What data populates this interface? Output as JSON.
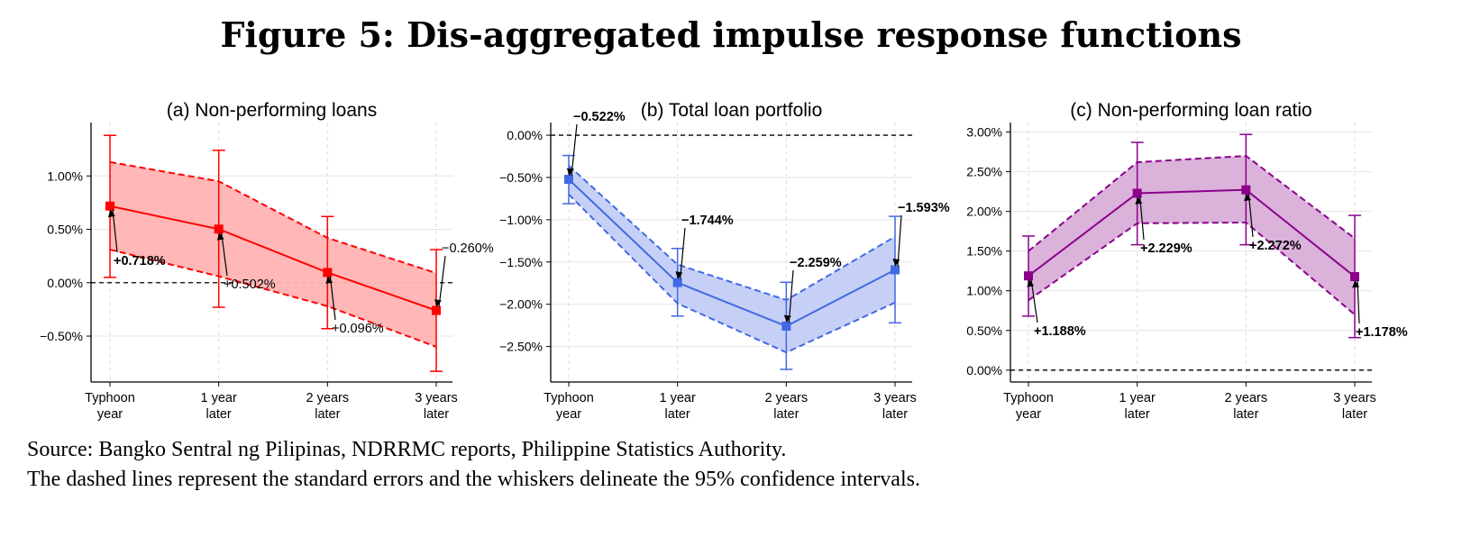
{
  "figure": {
    "title": "Figure 5: Dis-aggregated impulse response functions",
    "source_line": "Source: Bangko Sentral ng Pilipinas, NDRRMC reports, Philippine Statistics Authority.",
    "note_line": "The dashed lines represent the standard errors and the whiskers delineate the 95% confidence intervals."
  },
  "chart_data": [
    {
      "type": "line",
      "title": "(a) Non-performing loans",
      "categories": [
        [
          "Typhoon",
          "year"
        ],
        [
          "1 year",
          "later"
        ],
        [
          "2 years",
          "later"
        ],
        [
          "3 years",
          "later"
        ]
      ],
      "values": [
        0.718,
        0.502,
        0.096,
        -0.26
      ],
      "se_upper": [
        1.13,
        0.95,
        0.42,
        0.09
      ],
      "se_lower": [
        0.31,
        0.06,
        -0.22,
        -0.6
      ],
      "ci_upper": [
        1.38,
        1.24,
        0.62,
        0.31
      ],
      "ci_lower": [
        0.05,
        -0.23,
        -0.43,
        -0.83
      ],
      "data_labels": [
        "+0.718%",
        "+0.502%",
        "+0.096%",
        "−0.260%"
      ],
      "label_bold": [
        true,
        false,
        false,
        false
      ],
      "yticks": [
        -0.5,
        0.0,
        0.5,
        1.0
      ],
      "ytick_labels": [
        "−0.50%",
        "0.00%",
        "0.50%",
        "1.00%"
      ],
      "ylim": [
        -0.93,
        1.5
      ],
      "color": "#ff0000",
      "fill": "#ffb3b3"
    },
    {
      "type": "line",
      "title": "(b) Total loan portfolio",
      "categories": [
        [
          "Typhoon",
          "year"
        ],
        [
          "1 year",
          "later"
        ],
        [
          "2 years",
          "later"
        ],
        [
          "3 years",
          "later"
        ]
      ],
      "values": [
        -0.522,
        -1.744,
        -2.259,
        -1.593
      ],
      "se_upper": [
        -0.36,
        -1.53,
        -1.95,
        -1.2
      ],
      "se_lower": [
        -0.7,
        -1.99,
        -2.57,
        -1.98
      ],
      "ci_upper": [
        -0.24,
        -1.34,
        -1.74,
        -0.96
      ],
      "ci_lower": [
        -0.81,
        -2.14,
        -2.77,
        -2.22
      ],
      "data_labels": [
        "−0.522%",
        "−1.744%",
        "−2.259%",
        "−1.593%"
      ],
      "label_bold": [
        true,
        true,
        true,
        true
      ],
      "yticks": [
        -2.5,
        -2.0,
        -1.5,
        -1.0,
        -0.5,
        0.0
      ],
      "ytick_labels": [
        "−2.50%",
        "−2.00%",
        "−1.50%",
        "−1.00%",
        "−0.50%",
        "0.00%"
      ],
      "ylim": [
        -2.92,
        0.15
      ],
      "color": "#4169e1",
      "fill": "#c3cdf5"
    },
    {
      "type": "line",
      "title": "(c) Non-performing loan ratio",
      "categories": [
        [
          "Typhoon",
          "year"
        ],
        [
          "1 year",
          "later"
        ],
        [
          "2 years",
          "later"
        ],
        [
          "3 years",
          "later"
        ]
      ],
      "values": [
        1.188,
        2.229,
        2.272,
        1.178
      ],
      "se_upper": [
        1.5,
        2.62,
        2.7,
        1.66
      ],
      "se_lower": [
        0.88,
        1.85,
        1.86,
        0.7
      ],
      "ci_upper": [
        1.69,
        2.87,
        2.97,
        1.95
      ],
      "ci_lower": [
        0.68,
        1.58,
        1.58,
        0.41
      ],
      "data_labels": [
        "+1.188%",
        "+2.229%",
        "+2.272%",
        "+1.178%"
      ],
      "label_bold": [
        true,
        true,
        true,
        true
      ],
      "yticks": [
        0.0,
        0.5,
        1.0,
        1.5,
        2.0,
        2.5,
        3.0
      ],
      "ytick_labels": [
        "0.00%",
        "0.50%",
        "1.00%",
        "1.50%",
        "2.00%",
        "2.50%",
        "3.00%"
      ],
      "ylim": [
        -0.15,
        3.12
      ],
      "color": "#8b008b",
      "fill": "#d8aed8"
    }
  ]
}
